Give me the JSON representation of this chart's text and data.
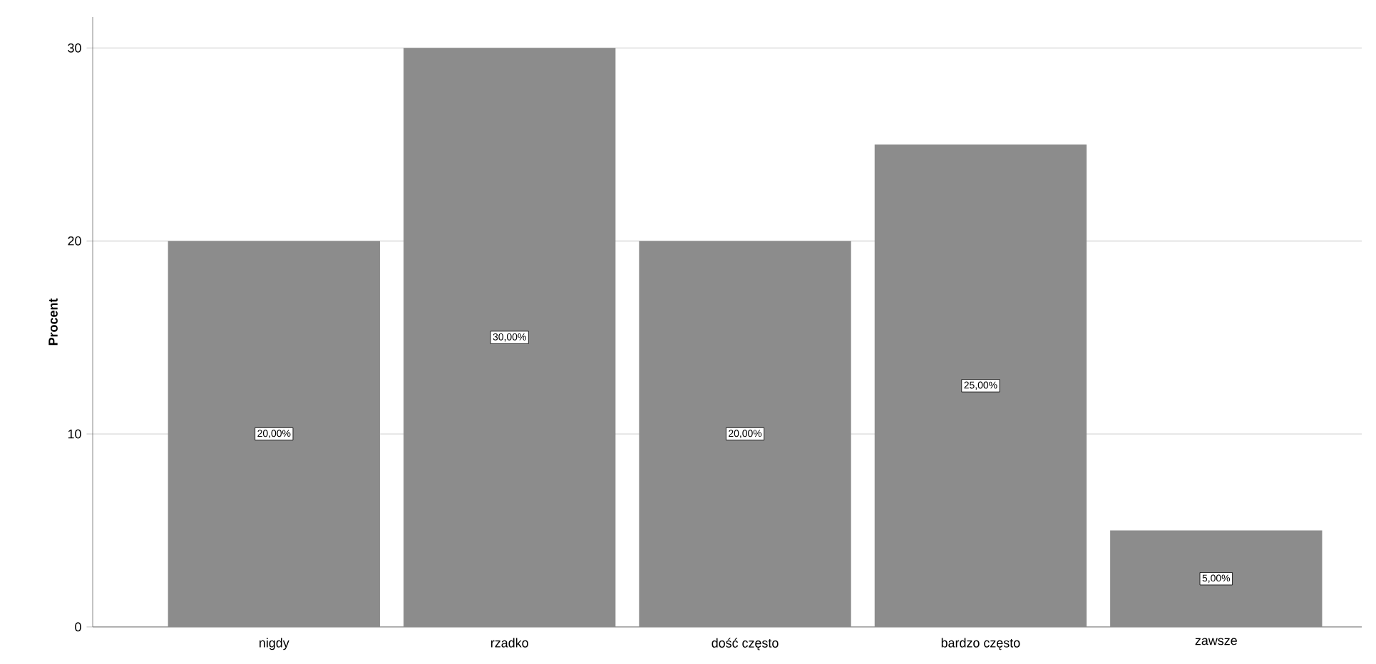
{
  "chart_data": {
    "type": "bar",
    "ylabel": "**Procent**",
    "categories": [
      "nigdy",
      "rzadko",
      "dość często",
      "bardzo często",
      "zawsze"
    ],
    "values": [
      20,
      30,
      20,
      25,
      5
    ],
    "value_labels": [
      "20,00%",
      "30,00%",
      "20,00%",
      "25,00%",
      "5,00%"
    ],
    "color": "#8c8c8c",
    "ylim": [
      0,
      31.6
    ],
    "yticks": [
      0,
      10,
      20,
      30
    ],
    "grid": "y"
  }
}
